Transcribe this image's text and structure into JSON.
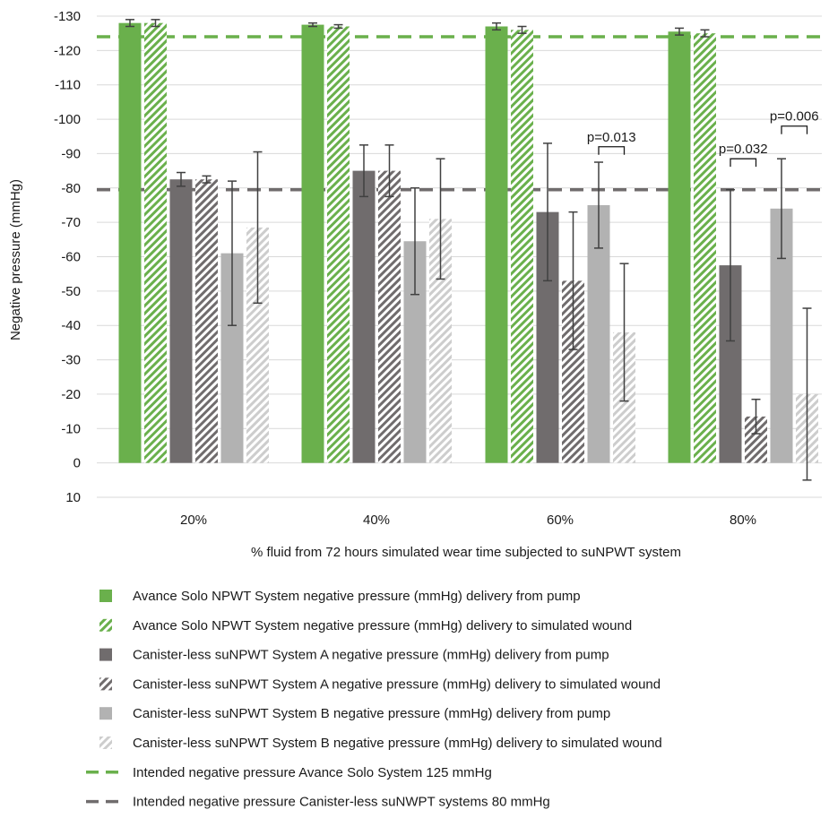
{
  "chart_data": {
    "type": "bar",
    "title": "",
    "xlabel": "% fluid from 72 hours simulated wear time subjected to suNPWT system",
    "ylabel": "Negative pressure (mmHg)",
    "ylim": [
      10,
      -130
    ],
    "y_ticks": [
      "-130",
      "-120",
      "-110",
      "-100",
      "-90",
      "-80",
      "-70",
      "-60",
      "-50",
      "-40",
      "-30",
      "-20",
      "-10",
      "0",
      "10"
    ],
    "y_tick_values": [
      -130,
      -120,
      -110,
      -100,
      -90,
      -80,
      -70,
      -60,
      -50,
      -40,
      -30,
      -20,
      -10,
      0,
      10
    ],
    "categories": [
      "20%",
      "40%",
      "60%",
      "80%"
    ],
    "grid": true,
    "legend_position": "bottom",
    "series": [
      {
        "name": "Avance Solo NPWT System negative pressure (mmHg) delivery from pump",
        "color": "#6ab04c",
        "pattern": "solid",
        "values": [
          -128,
          -127.5,
          -127,
          -125.5
        ],
        "err": [
          1,
          0.5,
          1,
          1
        ]
      },
      {
        "name": "Avance Solo NPWT System negative pressure (mmHg) delivery to simulated wound",
        "color": "#6ab04c",
        "pattern": "hatch",
        "values": [
          -128,
          -127,
          -126,
          -125
        ],
        "err": [
          1,
          0.5,
          1,
          1
        ]
      },
      {
        "name": "Canister-less suNPWT System A negative pressure (mmHg) delivery from pump",
        "color": "#706c6d",
        "pattern": "solid",
        "values": [
          -82.5,
          -85,
          -73,
          -57.5
        ],
        "err": [
          2,
          7.5,
          20,
          22
        ]
      },
      {
        "name": "Canister-less suNPWT System A negative pressure (mmHg) delivery to simulated wound",
        "color": "#706c6d",
        "pattern": "hatch",
        "values": [
          -82.5,
          -85,
          -53,
          -13.5
        ],
        "err": [
          1,
          7.5,
          20,
          5
        ]
      },
      {
        "name": "Canister-less suNPWT System B negative pressure (mmHg) delivery from pump",
        "color": "#b2b2b2",
        "pattern": "solid",
        "values": [
          -61,
          -64.5,
          -75,
          -74
        ],
        "err": [
          21,
          15.5,
          12.5,
          14.5
        ]
      },
      {
        "name": "Canister-less suNPWT System B negative pressure (mmHg) delivery to simulated wound",
        "color": "#cdcdcd",
        "pattern": "hatch",
        "values": [
          -68.5,
          -71,
          -38,
          -20
        ],
        "err": [
          22,
          17.5,
          20,
          25
        ]
      }
    ],
    "reference_lines": [
      {
        "name": "Intended negative pressure Avance Solo System 125 mmHg",
        "value": -124,
        "color": "#6ab04c",
        "style": "dashed"
      },
      {
        "name": "Intended negative pressure Canister-less suNWPT systems 80 mmHg",
        "value": -79.5,
        "color": "#706c6d",
        "style": "dashed"
      }
    ],
    "annotations": [
      {
        "text": "p=0.013",
        "category_index": 2,
        "from_series": 4,
        "to_series": 5,
        "bracket_at": -92
      },
      {
        "text": "p=0.032",
        "category_index": 3,
        "from_series": 2,
        "to_series": 3,
        "bracket_at": -88.5
      },
      {
        "text": "p=0.006",
        "category_index": 3,
        "from_series": 4,
        "to_series": 5,
        "bracket_at": -98
      }
    ]
  }
}
